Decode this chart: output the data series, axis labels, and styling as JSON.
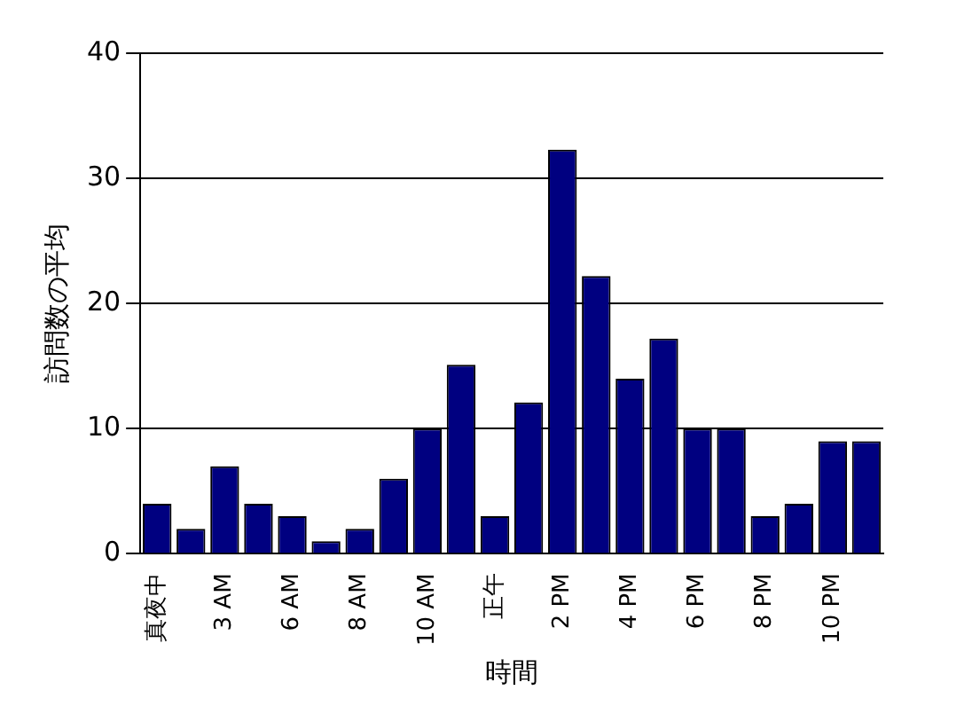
{
  "chart_data": {
    "type": "bar",
    "xlabel": "時間",
    "ylabel": "訪問数の平均",
    "categories": [
      "真夜中",
      null,
      "3 AM",
      null,
      "6 AM",
      null,
      "8 AM",
      null,
      "10 AM",
      null,
      "正午",
      null,
      "2 PM",
      null,
      "4 PM",
      null,
      "6 PM",
      null,
      "8 PM",
      null,
      "10 PM",
      null
    ],
    "values": [
      4,
      2,
      7,
      4,
      3,
      1,
      2,
      6,
      10,
      15.1,
      3,
      12.1,
      32.3,
      22.2,
      14,
      17.2,
      10,
      10,
      3,
      4,
      9,
      9
    ],
    "color": "#000080",
    "ylim": [
      0,
      40
    ],
    "yticks": [
      0,
      10,
      20,
      30,
      40
    ],
    "grid": "y",
    "legend": false
  }
}
